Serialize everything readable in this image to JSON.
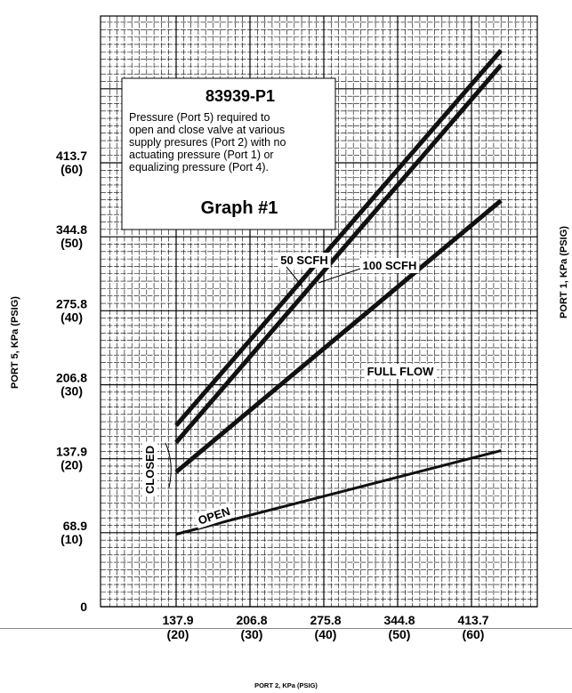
{
  "chart_data": {
    "type": "line",
    "title": "83939-P1",
    "description_lines": [
      "Pressure (Port 5) required to",
      "open and close valve at various",
      "supply presures (Port 2) with no",
      "actuating pressure (Port 1) or",
      "equalizing pressure (Port 4)."
    ],
    "graph_label": "Graph #1",
    "xlabel": "PORT 2, KPa (PSIG)",
    "ylabel": "PORT 5, KPa (PSIG)",
    "ylabel_right": "PORT 1, KPa (PSIG)",
    "x_unit": "PSIG",
    "y_unit": "PSIG",
    "xlim": [
      11,
      69
    ],
    "ylim": [
      0,
      83
    ],
    "x_ticks": [
      {
        "value": 20,
        "kpa": "137.9",
        "psig": "(20)"
      },
      {
        "value": 30,
        "kpa": "206.8",
        "psig": "(30)"
      },
      {
        "value": 40,
        "kpa": "275.8",
        "psig": "(40)"
      },
      {
        "value": 50,
        "kpa": "344.8",
        "psig": "(50)"
      },
      {
        "value": 60,
        "kpa": "413.7",
        "psig": "(60)"
      }
    ],
    "y_ticks": [
      {
        "value": 0,
        "kpa": "0",
        "psig": ""
      },
      {
        "value": 10,
        "kpa": "68.9",
        "psig": "(10)"
      },
      {
        "value": 20,
        "kpa": "137.9",
        "psig": "(20)"
      },
      {
        "value": 30,
        "kpa": "206.8",
        "psig": "(30)"
      },
      {
        "value": 40,
        "kpa": "275.8",
        "psig": "(40)"
      },
      {
        "value": 50,
        "kpa": "344.8",
        "psig": "(50)"
      },
      {
        "value": 60,
        "kpa": "413.7",
        "psig": "(60)"
      }
    ],
    "series": [
      {
        "name": "50 SCFH",
        "x": [
          20,
          64
        ],
        "y": [
          24.5,
          75.2
        ]
      },
      {
        "name": "100 SCFH",
        "x": [
          20,
          64
        ],
        "y": [
          22.2,
          73.2
        ]
      },
      {
        "name": "FULL FLOW",
        "x": [
          20,
          64
        ],
        "y": [
          18.2,
          54.9
        ]
      },
      {
        "name": "OPEN",
        "x": [
          20,
          64
        ],
        "y": [
          9.8,
          21.1
        ]
      }
    ],
    "annotations": [
      "50 SCFH",
      "100 SCFH",
      "FULL FLOW",
      "CLOSED",
      "OPEN"
    ],
    "grid": true,
    "colors": {
      "line": "#111111",
      "grid": "#000000",
      "background": "#ffffff"
    }
  }
}
